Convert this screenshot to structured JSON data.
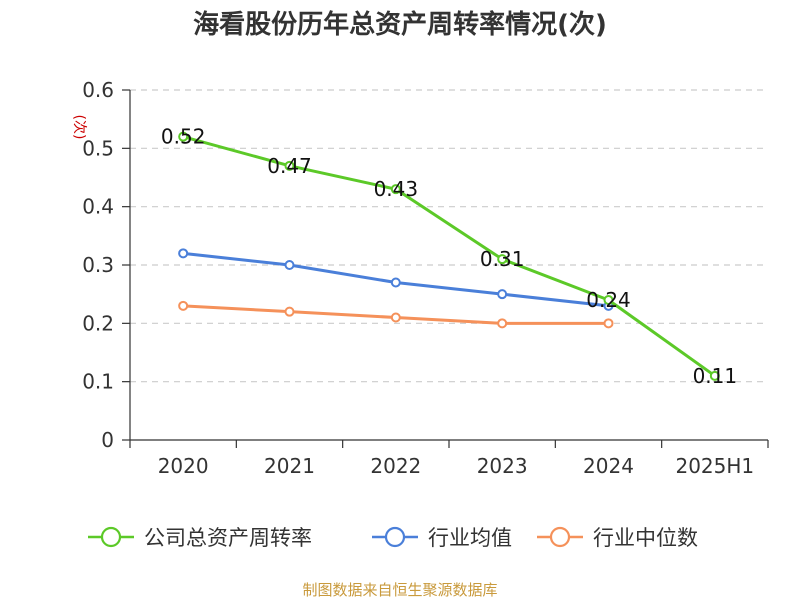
{
  "chart_data": {
    "type": "line",
    "title": "海看股份历年总资产周转率情况(次)",
    "ylabel": "(次)",
    "categories": [
      "2020",
      "2021",
      "2022",
      "2023",
      "2024",
      "2025H1"
    ],
    "ylim": [
      0,
      0.6
    ],
    "yticks": [
      "0",
      "0.1",
      "0.2",
      "0.3",
      "0.4",
      "0.5",
      "0.6"
    ],
    "grid": true,
    "legend_position": "bottom",
    "series": [
      {
        "name": "公司总资产周转率",
        "color": "#5cc928",
        "values": [
          0.52,
          0.47,
          0.43,
          0.31,
          0.24,
          0.11
        ],
        "labels": [
          "0.52",
          "0.47",
          "0.43",
          "0.31",
          "0.24",
          "0.11"
        ]
      },
      {
        "name": "行业均值",
        "color": "#4a7fd9",
        "values": [
          0.32,
          0.3,
          0.27,
          0.25,
          0.23,
          null
        ]
      },
      {
        "name": "行业中位数",
        "color": "#f5915a",
        "values": [
          0.23,
          0.22,
          0.21,
          0.2,
          0.2,
          null
        ]
      }
    ],
    "source": "制图数据来自恒生聚源数据库"
  }
}
